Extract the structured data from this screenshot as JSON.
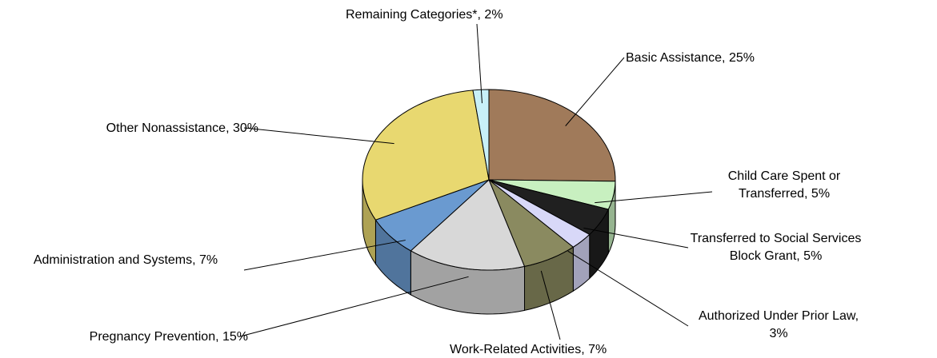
{
  "chart_data": {
    "type": "pie",
    "categories": [
      "Basic Assistance, 25%",
      "Child Care Spent or Transferred, 5%",
      "Transferred to Social Services Block Grant, 5%",
      "Authorized Under Prior Law, 3%",
      "Work-Related Activities, 7%",
      "Pregnancy Prevention, 15%",
      "Administration and Systems, 7%",
      "Other Nonassistance, 30%",
      "Remaining Categories*, 2%"
    ],
    "values": [
      25,
      5,
      5,
      3,
      7,
      15,
      7,
      30,
      2
    ],
    "colors": [
      "#a07a5a",
      "#c8f0c0",
      "#202020",
      "#d8d8f8",
      "#8a8a60",
      "#d8d8d8",
      "#6a9ad0",
      "#e8d870",
      "#c8f0f8"
    ]
  }
}
